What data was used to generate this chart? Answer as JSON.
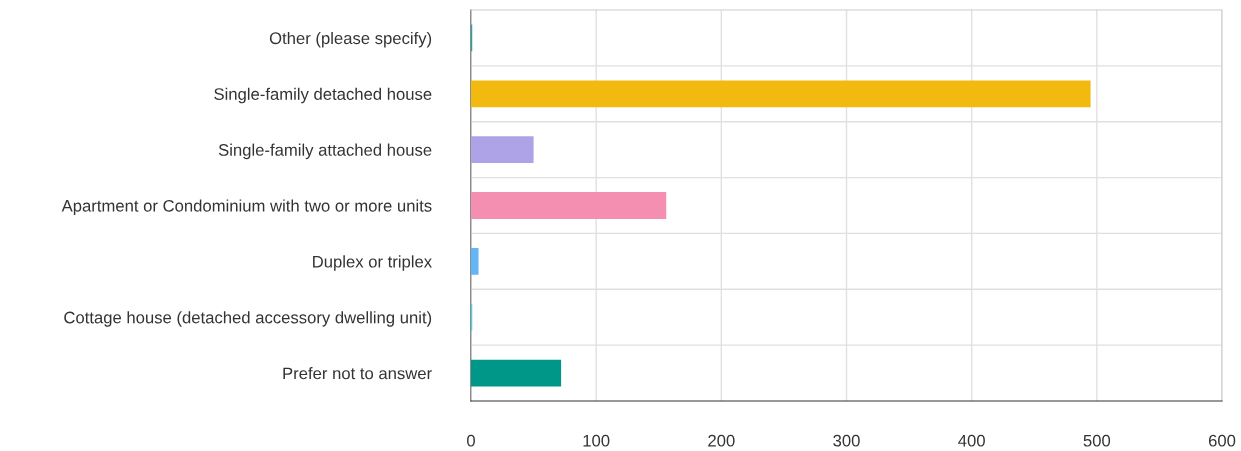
{
  "chart_data": {
    "type": "bar",
    "orientation": "horizontal",
    "categories": [
      "Other (please specify)",
      "Single-family detached house",
      "Single-family attached house",
      "Apartment or Condominium with two or more units",
      "Duplex or triplex",
      "Cottage house (detached accessory dwelling unit)",
      "Prefer not to answer"
    ],
    "values": [
      1,
      495,
      50,
      156,
      6,
      1,
      72
    ],
    "colors": [
      "#26a69a",
      "#f2b90f",
      "#ada3e6",
      "#f48fb1",
      "#64b5f6",
      "#4dd0e1",
      "#009688"
    ],
    "xlim": [
      0,
      600
    ],
    "xticks": [
      0,
      100,
      200,
      300,
      400,
      500,
      600
    ],
    "grid": true
  }
}
